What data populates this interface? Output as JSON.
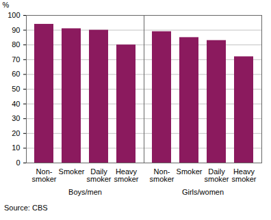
{
  "chart_data": {
    "type": "bar",
    "ylabel": "%",
    "source": "Source: CBS",
    "categories": [
      "Non-\nsmoker",
      "Smoker",
      "Daily\nsmoker",
      "Heavy\nsmoker",
      "Non-\nsmoker",
      "Smoker",
      "Daily\nsmoker",
      "Heavy\nsmoker"
    ],
    "group": [
      "Boys/men",
      "Boys/men",
      "Boys/men",
      "Boys/men",
      "Girls/women",
      "Girls/women",
      "Girls/women",
      "Girls/women"
    ],
    "values": [
      94,
      91,
      90,
      80,
      89,
      85,
      83,
      72
    ],
    "color": "#8b1a5e",
    "ylim": [
      0,
      100
    ],
    "yticks": [
      0,
      10,
      20,
      30,
      40,
      50,
      60,
      70,
      80,
      90,
      100
    ],
    "grid": true
  }
}
